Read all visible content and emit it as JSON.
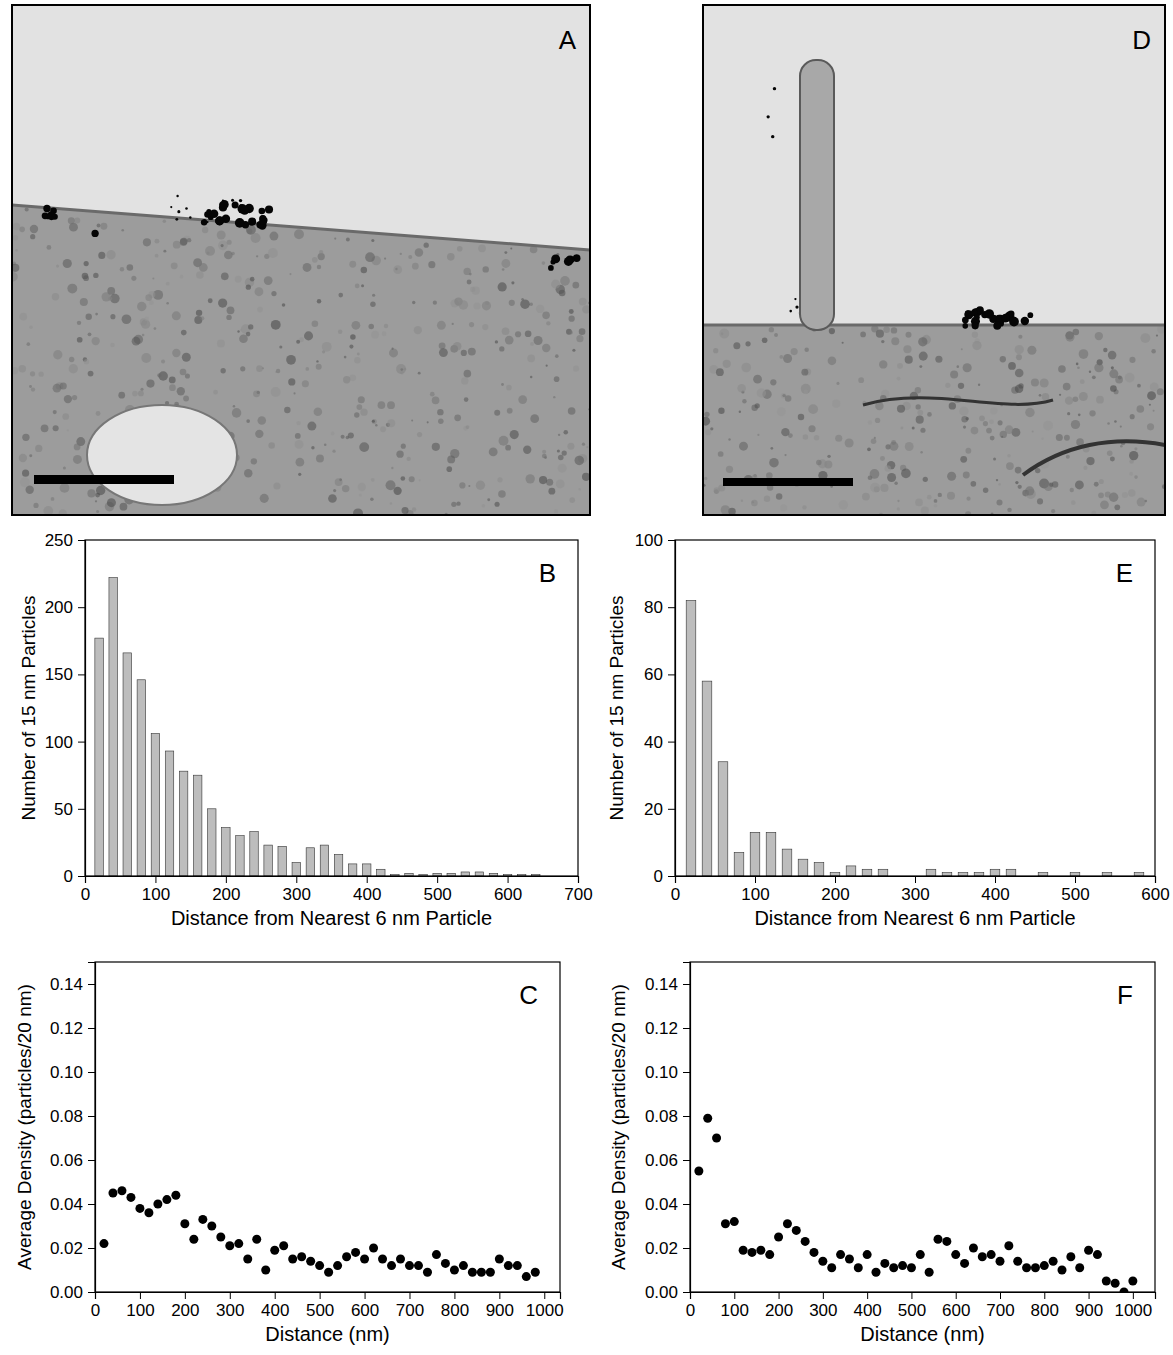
{
  "chart_data": [
    {
      "type": "image",
      "panel_label": "A"
    },
    {
      "type": "histogram",
      "panel_label": "B",
      "x_label": "Distance from Nearest 6 nm Particle",
      "y_label": "Number of 15 nm Particles",
      "bins": [
        10,
        30,
        50,
        70,
        90,
        110,
        130,
        150,
        170,
        190,
        210,
        230,
        250,
        270,
        290,
        310,
        330,
        350,
        370,
        390,
        410,
        430,
        450,
        470,
        490,
        510,
        530,
        550,
        570,
        590,
        610,
        630,
        650
      ],
      "values": [
        177,
        222,
        166,
        146,
        106,
        93,
        78,
        75,
        50,
        36,
        30,
        33,
        23,
        22,
        10,
        21,
        23,
        16,
        9,
        9,
        5,
        1,
        2,
        1,
        2,
        2,
        3,
        3,
        2,
        1,
        1,
        1
      ],
      "color": "#bdbdbd",
      "xlim": [
        0,
        700
      ],
      "xticks": [
        0,
        100,
        200,
        300,
        400,
        500,
        600,
        700
      ],
      "ylim": [
        0,
        250
      ],
      "yticks": [
        0,
        50,
        100,
        150,
        200,
        250
      ]
    },
    {
      "type": "scatter",
      "panel_label": "C",
      "x_label": "Distance (nm)",
      "y_label": "Average Density (particles/20 nm)",
      "x": [
        20,
        40,
        60,
        80,
        100,
        120,
        140,
        160,
        180,
        200,
        220,
        240,
        260,
        280,
        300,
        320,
        340,
        360,
        380,
        400,
        420,
        440,
        460,
        480,
        500,
        520,
        540,
        560,
        580,
        600,
        620,
        640,
        660,
        680,
        700,
        720,
        740,
        760,
        780,
        800,
        820,
        840,
        860,
        880,
        900,
        920,
        940,
        960,
        980
      ],
      "values": [
        0.022,
        0.045,
        0.046,
        0.043,
        0.038,
        0.036,
        0.04,
        0.042,
        0.044,
        0.031,
        0.024,
        0.033,
        0.03,
        0.025,
        0.021,
        0.022,
        0.015,
        0.024,
        0.01,
        0.019,
        0.021,
        0.015,
        0.016,
        0.014,
        0.012,
        0.009,
        0.012,
        0.016,
        0.018,
        0.015,
        0.02,
        0.015,
        0.012,
        0.015,
        0.012,
        0.012,
        0.009,
        0.017,
        0.013,
        0.01,
        0.012,
        0.009,
        0.009,
        0.009,
        0.015,
        0.012,
        0.012,
        0.007,
        0.009
      ],
      "color": "#000000",
      "marker": "circle",
      "xlim": [
        0,
        1035
      ],
      "xticks": [
        0,
        100,
        200,
        300,
        400,
        500,
        600,
        700,
        800,
        900,
        1000
      ],
      "ylim": [
        0,
        0.15
      ],
      "yticks": [
        {
          "value": 0,
          "label": "0.00"
        },
        0.02,
        0.04,
        0.06,
        0.08,
        {
          "value": 0.1,
          "label": "0.10"
        },
        0.12,
        0.14
      ]
    },
    {
      "type": "image",
      "panel_label": "D"
    },
    {
      "type": "histogram",
      "panel_label": "E",
      "x_label": "Distance from Nearest 6 nm Particle",
      "y_label": "Number of 15 nm Particles",
      "bins": [
        10,
        30,
        50,
        70,
        90,
        110,
        130,
        150,
        170,
        190,
        210,
        230,
        250,
        270,
        290,
        310,
        330,
        350,
        370,
        390,
        410,
        430,
        450,
        470,
        490,
        510,
        530,
        550,
        570,
        590
      ],
      "values": [
        82,
        58,
        34,
        7,
        13,
        13,
        8,
        5,
        4,
        1,
        3,
        2,
        2,
        0,
        0,
        2,
        1,
        1,
        1,
        2,
        2,
        0,
        1,
        0,
        1,
        0,
        1,
        0,
        1
      ],
      "color": "#bdbdbd",
      "xlim": [
        0,
        600
      ],
      "xticks": [
        0,
        100,
        200,
        300,
        400,
        500,
        600
      ],
      "ylim": [
        0,
        100
      ],
      "yticks": [
        0,
        20,
        40,
        60,
        80,
        100
      ]
    },
    {
      "type": "scatter",
      "panel_label": "F",
      "x_label": "Distance (nm)",
      "y_label": "Average Density (particles/20 nm)",
      "x": [
        20,
        40,
        60,
        80,
        100,
        120,
        140,
        160,
        180,
        200,
        220,
        240,
        260,
        280,
        300,
        320,
        340,
        360,
        380,
        400,
        420,
        440,
        460,
        480,
        500,
        520,
        540,
        560,
        580,
        600,
        620,
        640,
        660,
        680,
        700,
        720,
        740,
        760,
        780,
        800,
        820,
        840,
        860,
        880,
        900,
        920,
        940,
        960,
        980,
        1000
      ],
      "values": [
        0.055,
        0.079,
        0.07,
        0.031,
        0.032,
        0.019,
        0.018,
        0.019,
        0.017,
        0.025,
        0.031,
        0.028,
        0.023,
        0.018,
        0.014,
        0.011,
        0.017,
        0.015,
        0.011,
        0.017,
        0.009,
        0.013,
        0.011,
        0.012,
        0.011,
        0.017,
        0.009,
        0.024,
        0.023,
        0.017,
        0.013,
        0.02,
        0.016,
        0.017,
        0.014,
        0.021,
        0.014,
        0.011,
        0.011,
        0.012,
        0.014,
        0.01,
        0.016,
        0.011,
        0.019,
        0.017,
        0.005,
        0.004,
        0,
        0.005
      ],
      "color": "#000000",
      "marker": "circle",
      "xlim": [
        0,
        1050
      ],
      "xticks": [
        0,
        100,
        200,
        300,
        400,
        500,
        600,
        700,
        800,
        900,
        1000
      ],
      "ylim": [
        0,
        0.15
      ],
      "yticks": [
        {
          "value": 0,
          "label": "0.00"
        },
        0.02,
        0.04,
        0.06,
        0.08,
        {
          "value": 0.1,
          "label": "0.10"
        },
        0.12,
        0.14
      ]
    }
  ]
}
